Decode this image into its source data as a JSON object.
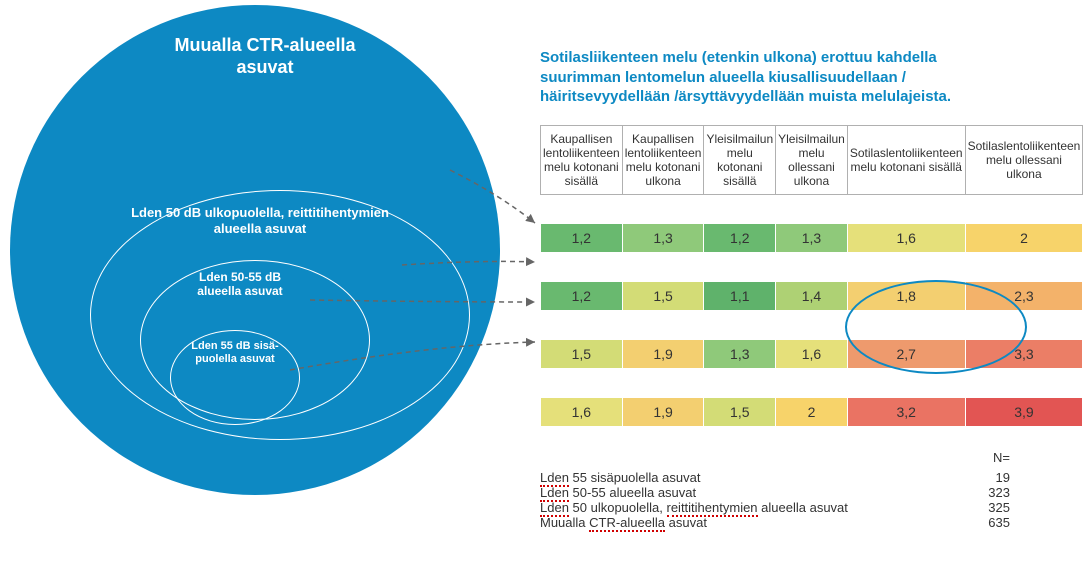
{
  "venn": {
    "outer_label": "Muualla CTR-alueella asuvat",
    "ring2_label": "Lden 50 dB ulkopuolella, reittitihentymien alueella asuvat",
    "ring3_label": "Lden 50-55 dB alueella asuvat",
    "ring4_label": "Lden 55 dB sisä-puolella asuvat",
    "circle_fill": "#0d89c3",
    "outline": "#ffffff"
  },
  "title": "Sotilasliikenteen melu (etenkin ulkona) erottuu kahdella suurimman lentomelun alueella  kiusallisuudellaan / häiritsevyydellään /ärsyttävyydellään  muista melulajeista.",
  "columns": [
    "Kaupallisen lentoliikenteen melu kotonani sisällä",
    "Kaupallisen lentoliikenteen melu kotonani ulkona",
    "Yleisilmailun melu kotonani sisällä",
    "Yleisilmailun melu ollessani ulkona",
    "Sotilaslentoliikenteen melu kotonani sisällä",
    "Sotilaslentoliikenteen melu ollessani ulkona"
  ],
  "rows": [
    {
      "values": [
        "1,2",
        "1,3",
        "1,2",
        "1,3",
        "1,6",
        "2"
      ],
      "colors": [
        "#69b96f",
        "#8fc97a",
        "#69b96f",
        "#8fc97a",
        "#e5e07a",
        "#f7d36a"
      ]
    },
    {
      "values": [
        "1,2",
        "1,5",
        "1,1",
        "1,4",
        "1,8",
        "2,3"
      ],
      "colors": [
        "#69b96f",
        "#d3dc76",
        "#5fb26b",
        "#aed174",
        "#f3cf70",
        "#f3b26a"
      ]
    },
    {
      "values": [
        "1,5",
        "1,9",
        "1,3",
        "1,6",
        "2,7",
        "3,3"
      ],
      "colors": [
        "#d3dc76",
        "#f3cf70",
        "#8fc97a",
        "#e5e07a",
        "#ee9a6d",
        "#eb7e66"
      ]
    },
    {
      "values": [
        "1,6",
        "1,9",
        "1,5",
        "2",
        "3,2",
        "3,9"
      ],
      "colors": [
        "#e5e07a",
        "#f3cf70",
        "#d3dc76",
        "#f7d36a",
        "#ea7363",
        "#e25553"
      ]
    }
  ],
  "counts": {
    "header": "N=",
    "items": [
      {
        "label": "Lden 55 sisäpuolella asuvat",
        "n": "19"
      },
      {
        "label": "Lden 50-55 alueella asuvat",
        "n": "323"
      },
      {
        "label": "Lden 50 ulkopuolella, reittitihentymien alueella asuvat",
        "n": "325"
      },
      {
        "label": "Muualla CTR-alueella asuvat",
        "n": "635"
      }
    ]
  }
}
